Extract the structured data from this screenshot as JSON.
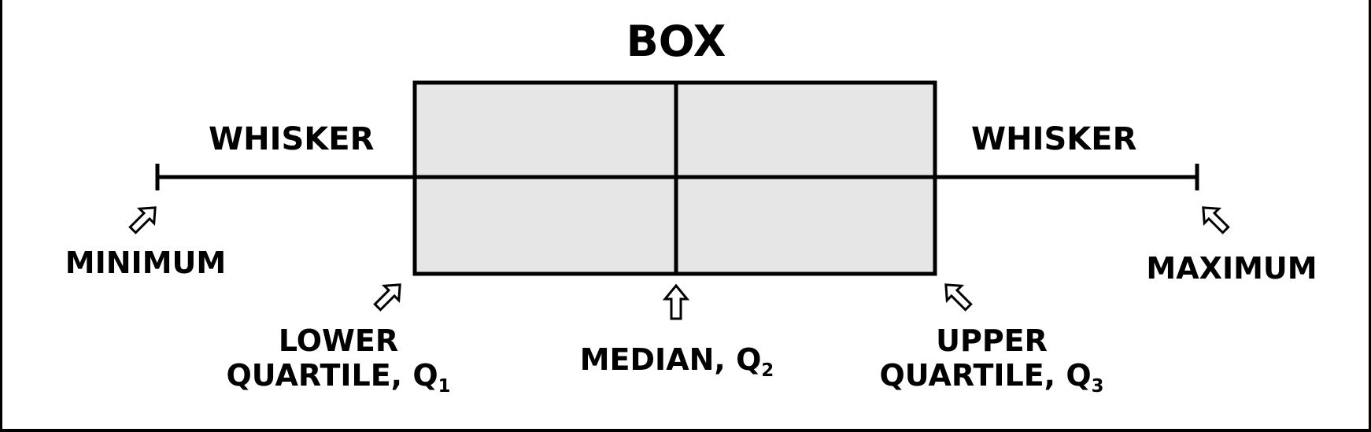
{
  "labels": {
    "box": "BOX",
    "whisker_left": "WHISKER",
    "whisker_right": "WHISKER",
    "minimum": "MINIMUM",
    "maximum": "MAXIMUM",
    "lower_quartile_line1": "LOWER",
    "lower_quartile_line2": "QUARTILE, Q",
    "lower_quartile_sub": "1",
    "median": "MEDIAN, Q",
    "median_sub": "2",
    "upper_quartile_line1": "UPPER",
    "upper_quartile_line2": "QUARTILE, Q",
    "upper_quartile_sub": "3"
  },
  "colors": {
    "box_fill": "#e6e6e6",
    "stroke": "#000000"
  }
}
